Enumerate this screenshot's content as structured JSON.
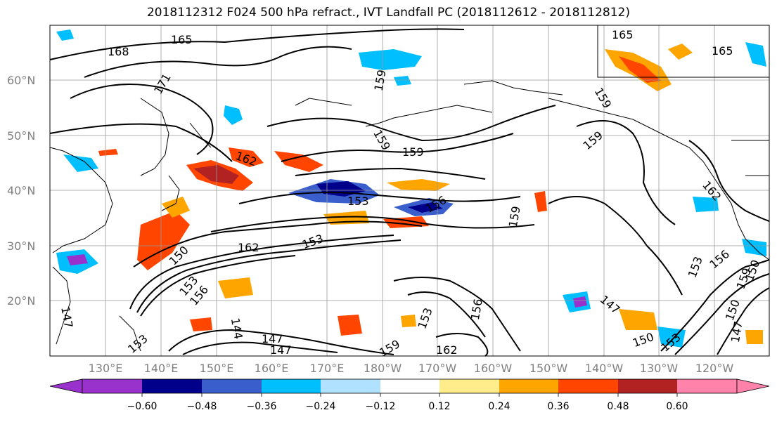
{
  "title": "2018112312 F024 500 hPa refract., IVT Landfall PC (2018112612 - 2018112812)",
  "map": {
    "lat_labels": [
      "60°N",
      "50°N",
      "40°N",
      "30°N",
      "20°N"
    ],
    "lon_labels": [
      "130°E",
      "140°E",
      "150°E",
      "160°E",
      "170°E",
      "180°W",
      "170°W",
      "160°W",
      "150°W",
      "140°W",
      "130°W",
      "120°W"
    ],
    "contour_labels": [
      "165",
      "168",
      "171",
      "165",
      "165",
      "159",
      "159",
      "159",
      "159",
      "162",
      "162",
      "159",
      "153",
      "156",
      "159",
      "162",
      "153",
      "150",
      "153",
      "156",
      "153",
      "156",
      "159",
      "147",
      "156",
      "153",
      "147",
      "150",
      "147",
      "144",
      "147",
      "150",
      "153",
      "159",
      "162",
      "147",
      "150",
      "153"
    ],
    "contour_levels_note": ""
  },
  "colorbar": {
    "tick_labels": [
      "−0.60",
      "−0.48",
      "−0.36",
      "−0.24",
      "−0.12",
      "0.12",
      "0.24",
      "0.36",
      "0.48",
      "0.60"
    ],
    "colors": [
      "#9932cc",
      "#00008b",
      "#3a5fcd",
      "#00bfff",
      "#b0e2ff",
      "#ffffff",
      "#ffec8b",
      "#ffa500",
      "#ff4500",
      "#b22222",
      "#ff82ab"
    ]
  }
}
